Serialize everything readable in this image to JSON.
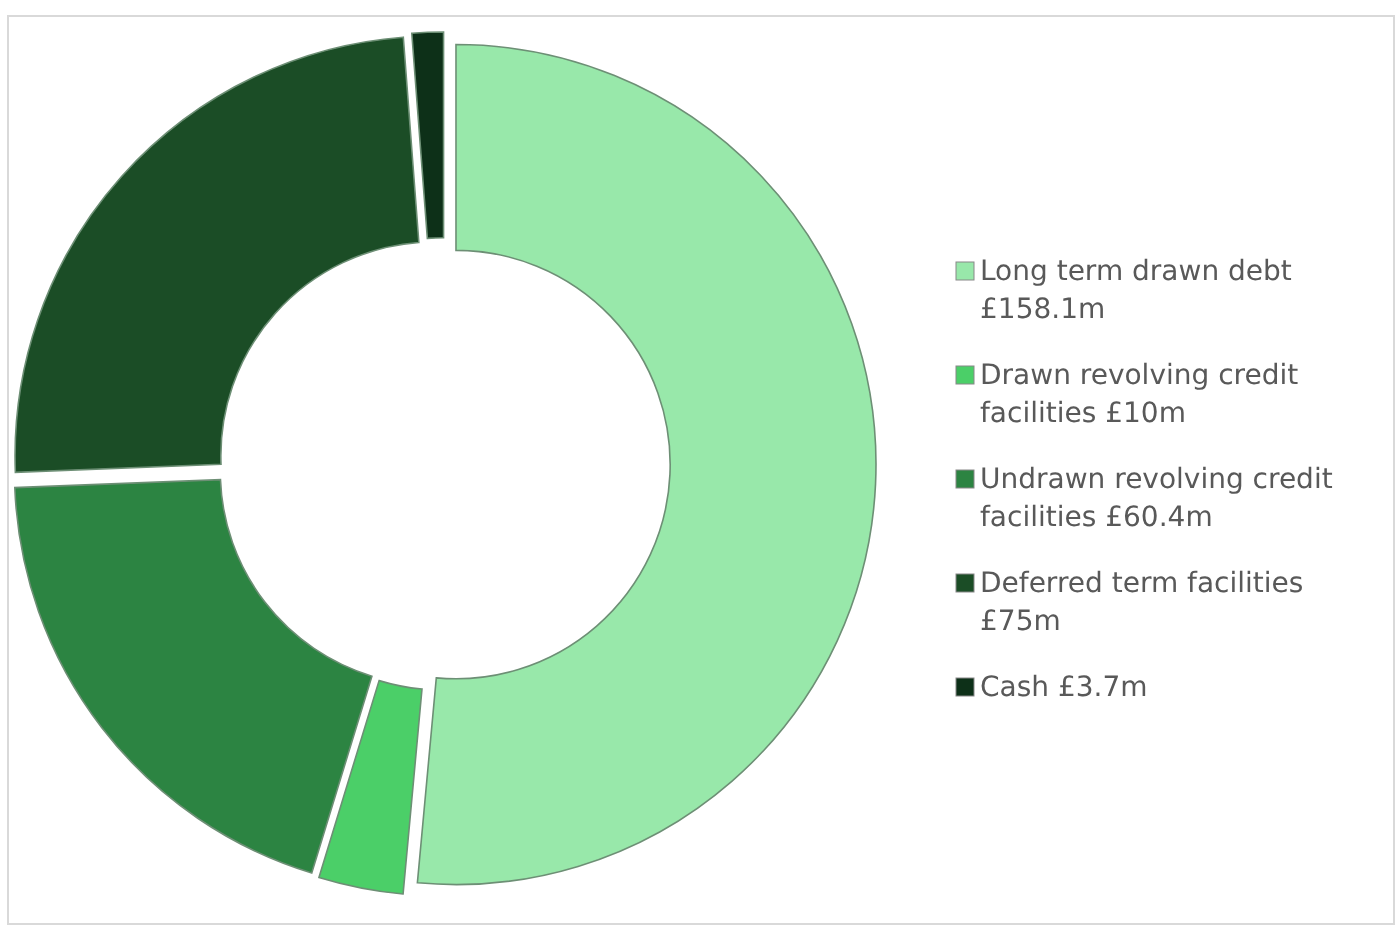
{
  "chart_data": {
    "type": "donut",
    "categories": [
      "Long term drawn debt",
      "Drawn revolving credit facilities",
      "Undrawn revolving credit facilities",
      "Deferred term facilities",
      "Cash"
    ],
    "values": [
      158.1,
      10,
      60.4,
      75,
      3.7
    ],
    "value_labels": [
      "£158.1m",
      "£10m",
      "£60.4m",
      "£75m",
      "£3.7m"
    ],
    "colors": [
      "#98e8aa",
      "#4bcf68",
      "#2c8442",
      "#1b4d26",
      "#0d3018"
    ],
    "legend": "right"
  }
}
